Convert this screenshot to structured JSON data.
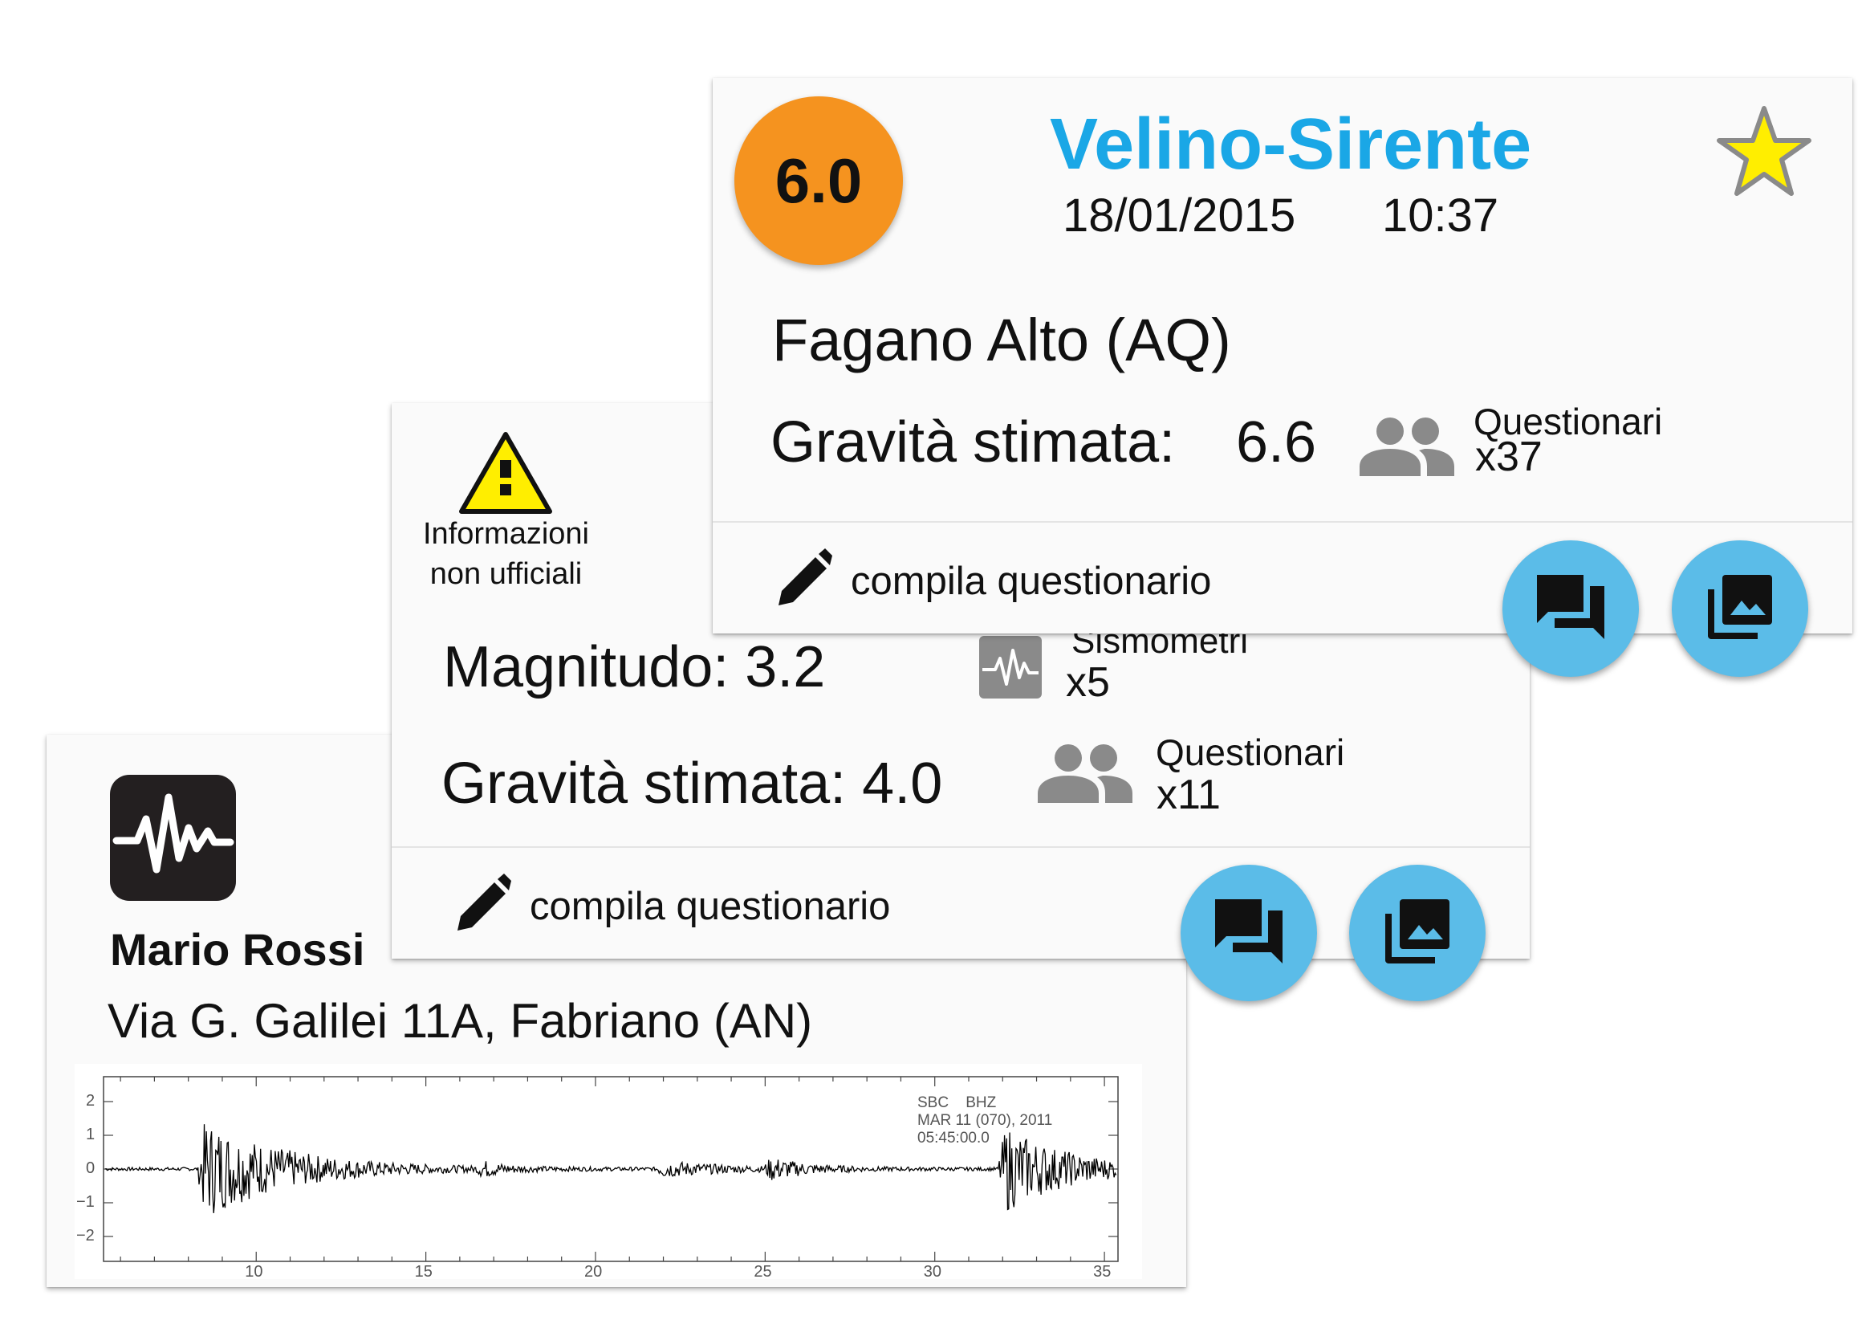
{
  "colors": {
    "accent_blue": "#1aa7e6",
    "magnitude_orange": "#f5931f",
    "fab_blue": "#5bbce8",
    "star_yellow": "#ffee00",
    "warning_yellow": "#ffee00",
    "icon_gray": "#8a8a8a"
  },
  "back_card": {
    "name": "Mario Rossi",
    "address": "Via G. Galilei 11A, Fabriano (AN)",
    "icon": "seismograph-app-icon",
    "seismogram": {
      "station": "SBC",
      "channel": "BHZ",
      "date": "MAR  11  (070),  2011",
      "time": "05:45:00.0",
      "y_ticks": [
        "2",
        "1",
        "0",
        "−1",
        "−2"
      ],
      "x_ticks": [
        "10",
        "15",
        "20",
        "25",
        "30",
        "35"
      ]
    }
  },
  "middle_card": {
    "warning_icon": "warning-icon",
    "warning_line1": "Informazioni",
    "warning_line2": "non ufficiali",
    "magnitude_text": "Magnitudo: 3.2",
    "seismometers_label": "Sismometri",
    "seismometers_count": "x5",
    "gravity_text": "Gravità stimata: 4.0",
    "questionnaires_label": "Questionari",
    "questionnaires_count": "x11",
    "action_label": "compila questionario"
  },
  "front_card": {
    "magnitude": "6.0",
    "title": "Velino-Sirente",
    "date": "18/01/2015",
    "time": "10:37",
    "location": "Fagano Alto (AQ)",
    "gravity_label": "Gravità stimata:",
    "gravity_value": "6.6",
    "questionnaires_label": "Questionari",
    "questionnaires_count": "x37",
    "action_label": "compila questionario"
  }
}
